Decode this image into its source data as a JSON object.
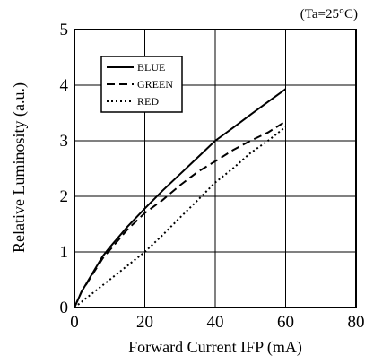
{
  "chart_data": {
    "type": "line",
    "condition": "(Ta=25°C)",
    "xlabel": "Forward Current  IFP (mA)",
    "ylabel": "Relative Luminosity (a.u.)",
    "xlim": [
      0,
      80
    ],
    "ylim": [
      0,
      5
    ],
    "x_ticks": [
      "0",
      "20",
      "40",
      "60",
      "80"
    ],
    "y_ticks": [
      "0",
      "1",
      "2",
      "3",
      "4",
      "5"
    ],
    "grid": true,
    "legend_position": "top-left",
    "series": [
      {
        "name": "BLUE",
        "style": "solid",
        "x": [
          0,
          2,
          5,
          8,
          10,
          15,
          20,
          25,
          30,
          35,
          40,
          45,
          50,
          55,
          60
        ],
        "y": [
          0,
          0.28,
          0.6,
          0.92,
          1.08,
          1.45,
          1.78,
          2.1,
          2.4,
          2.7,
          3.0,
          3.23,
          3.47,
          3.7,
          3.93
        ]
      },
      {
        "name": "GREEN",
        "style": "dashed",
        "x": [
          0,
          2,
          5,
          8,
          10,
          15,
          20,
          25,
          30,
          35,
          40,
          45,
          50,
          55,
          60
        ],
        "y": [
          0,
          0.28,
          0.58,
          0.88,
          1.03,
          1.4,
          1.7,
          1.93,
          2.2,
          2.44,
          2.63,
          2.83,
          3.0,
          3.15,
          3.35
        ]
      },
      {
        "name": "RED",
        "style": "dotted",
        "x": [
          0,
          5,
          10,
          15,
          20,
          25,
          30,
          35,
          40,
          45,
          50,
          55,
          60
        ],
        "y": [
          0,
          0.25,
          0.5,
          0.75,
          1.0,
          1.3,
          1.62,
          1.93,
          2.25,
          2.5,
          2.78,
          3.0,
          3.25
        ]
      }
    ]
  }
}
